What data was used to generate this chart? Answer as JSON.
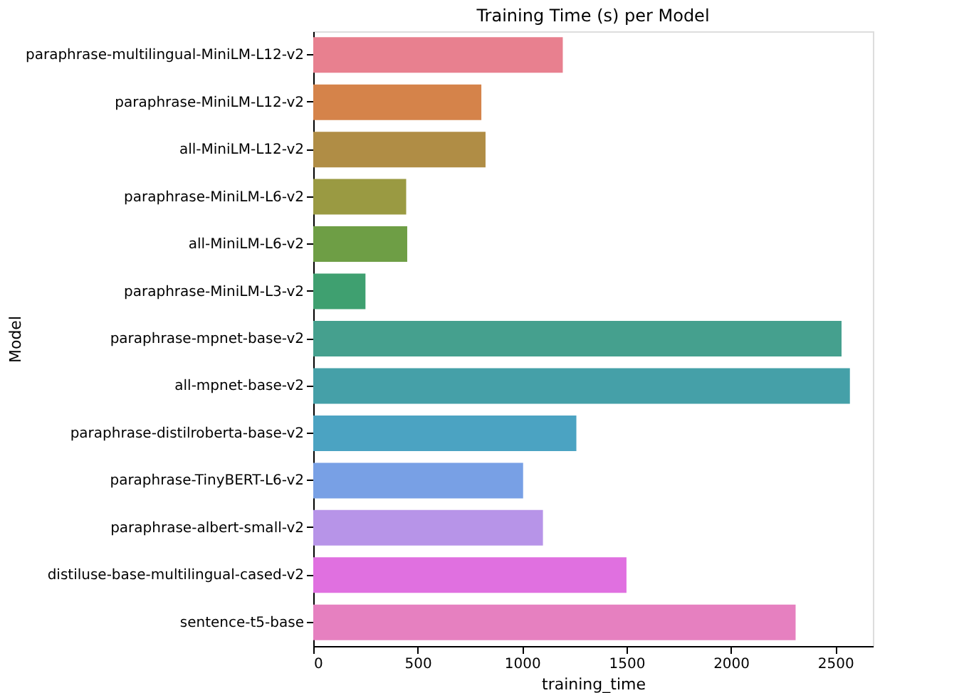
{
  "chart_data": {
    "type": "bar",
    "orientation": "horizontal",
    "title": "Training Time (s) per Model",
    "xlabel": "training_time",
    "ylabel": "Model",
    "categories": [
      "paraphrase-multilingual-MiniLM-L12-v2",
      "paraphrase-MiniLM-L12-v2",
      "all-MiniLM-L12-v2",
      "paraphrase-MiniLM-L6-v2",
      "all-MiniLM-L6-v2",
      "paraphrase-MiniLM-L3-v2",
      "paraphrase-mpnet-base-v2",
      "all-mpnet-base-v2",
      "paraphrase-distilroberta-base-v2",
      "paraphrase-TinyBERT-L6-v2",
      "paraphrase-albert-small-v2",
      "distiluse-base-multilingual-cased-v2",
      "sentence-t5-base"
    ],
    "values": [
      1195,
      805,
      825,
      445,
      450,
      250,
      2530,
      2570,
      1260,
      1005,
      1100,
      1500,
      2310
    ],
    "colors": [
      "#e8808f",
      "#d5834a",
      "#b08d45",
      "#9a9a42",
      "#6e9e45",
      "#3fa070",
      "#45a08e",
      "#45a0a8",
      "#4ba3c2",
      "#78a0e5",
      "#b794e8",
      "#e070e0",
      "#e680c0"
    ],
    "xlim": [
      0,
      2680
    ],
    "xticks": [
      0,
      500,
      1000,
      1500,
      2000,
      2500
    ],
    "grid": false,
    "legend": false
  }
}
